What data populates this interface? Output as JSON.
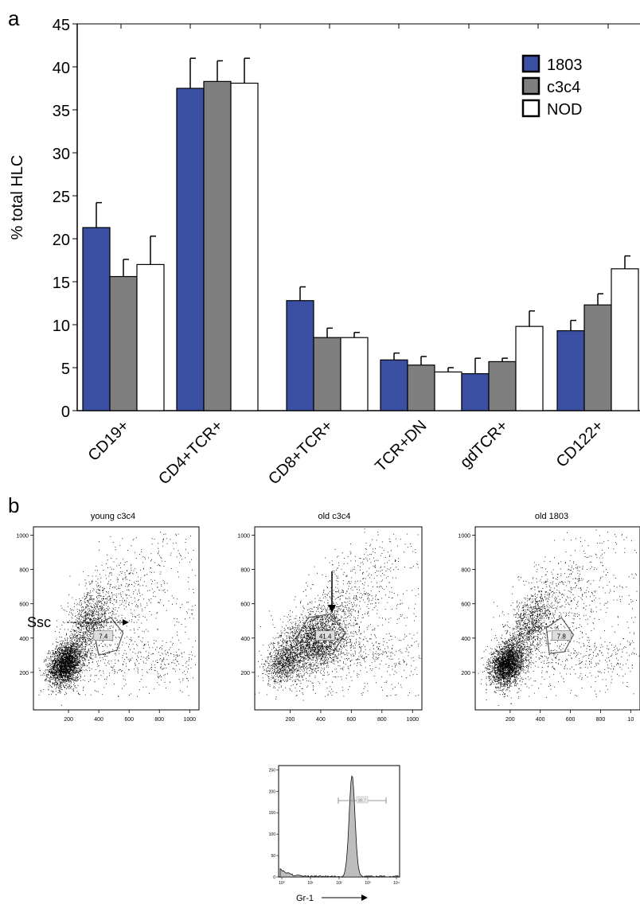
{
  "panel_labels": {
    "a": "a",
    "b": "b"
  },
  "colors": {
    "s1803": "#3a4fa2",
    "c3c4": "#7f7f7f",
    "NOD": "#ffffff"
  },
  "chart_data": [
    {
      "type": "bar",
      "ylabel": "% total HLC",
      "ylim": [
        0,
        45
      ],
      "yticks": [
        "0",
        "5",
        "10",
        "15",
        "20",
        "25",
        "30",
        "35",
        "40",
        "45"
      ],
      "categories": [
        "CD19+",
        "CD4+TCR+",
        "CD8+TCR+",
        "TCR+DN",
        "gdTCR+",
        "CD122+"
      ],
      "legend_position": "top-right",
      "series": [
        {
          "name": "1803",
          "values": [
            21.3,
            37.5,
            12.8,
            5.9,
            4.3,
            9.3
          ],
          "errors": [
            2.9,
            3.5,
            1.6,
            0.8,
            1.8,
            1.2
          ]
        },
        {
          "name": "c3c4",
          "values": [
            15.6,
            38.3,
            8.5,
            5.3,
            5.7,
            12.3
          ],
          "errors": [
            2.0,
            2.4,
            1.1,
            1.0,
            0.4,
            1.3
          ]
        },
        {
          "name": "NOD",
          "values": [
            17.0,
            38.1,
            8.5,
            4.5,
            9.8,
            16.5
          ],
          "errors": [
            3.3,
            2.9,
            0.6,
            0.5,
            1.8,
            1.5
          ]
        }
      ]
    },
    {
      "type": "scatter",
      "title": "young c3c4",
      "xlim": [
        0,
        1000
      ],
      "ylim": [
        0,
        1000
      ],
      "xticks": [
        "200",
        "400",
        "600",
        "800",
        "1000"
      ],
      "yticks": [
        "200",
        "400",
        "600",
        "800",
        "1000"
      ],
      "gate_label": "7.4",
      "xlabel": "Ssc"
    },
    {
      "type": "scatter",
      "title": "old c3c4",
      "xlim": [
        0,
        1000
      ],
      "ylim": [
        0,
        1000
      ],
      "xticks": [
        "200",
        "400",
        "600",
        "800",
        "1000"
      ],
      "yticks": [
        "200",
        "400",
        "600",
        "800",
        "1000"
      ],
      "gate_label": "41.4"
    },
    {
      "type": "scatter",
      "title": "old 1803",
      "xlim": [
        0,
        1000
      ],
      "ylim": [
        0,
        1000
      ],
      "xticks": [
        "200",
        "400",
        "600",
        "800",
        "10"
      ],
      "yticks": [
        "200",
        "400",
        "600",
        "800",
        "1000"
      ],
      "gate_label": "7.8"
    },
    {
      "type": "area",
      "xlabel": "Gr-1",
      "yticks": [
        "0",
        "50",
        "100",
        "150",
        "200",
        "250"
      ],
      "xticks": [
        "10⁰",
        "10¹",
        "10²",
        "10³",
        "10⁴"
      ],
      "gate_label": "86.7"
    }
  ]
}
